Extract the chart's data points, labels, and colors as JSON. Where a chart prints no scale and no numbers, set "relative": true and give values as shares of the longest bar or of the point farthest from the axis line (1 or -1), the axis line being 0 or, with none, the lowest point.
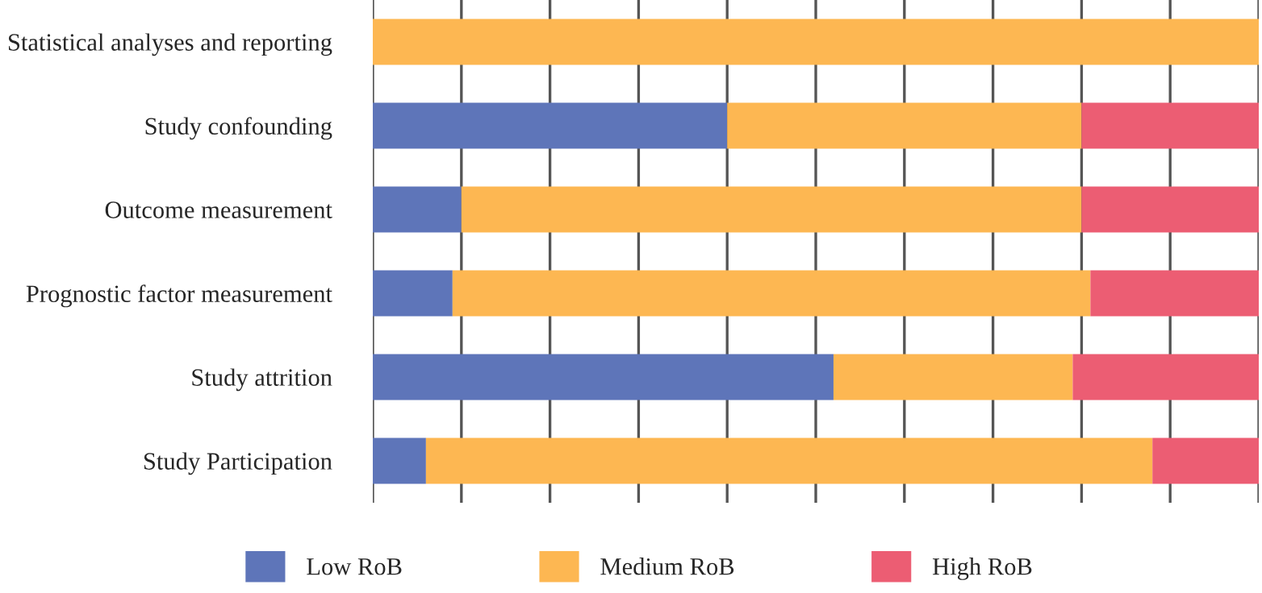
{
  "chart_data": {
    "type": "bar",
    "orientation": "horizontal",
    "stacked": true,
    "relative": true,
    "grid": "x",
    "legend": "bottom",
    "categories": [
      "Statistical analyses and reporting",
      "Study confounding",
      "Outcome measurement",
      "Prognostic factor measurement",
      "Study attrition",
      "Study Participation"
    ],
    "series": [
      {
        "name": "Low RoB",
        "color": "#5e75b9",
        "values": [
          0,
          0.4,
          0.1,
          0.09,
          0.52,
          0.06
        ]
      },
      {
        "name": "Medium RoB",
        "color": "#fdb752",
        "values": [
          1,
          0.4,
          0.7,
          0.72,
          0.27,
          0.82
        ]
      },
      {
        "name": "High RoB",
        "color": "#ec5d73",
        "values": [
          0,
          0.2,
          0.2,
          0.19,
          0.21,
          0.12
        ]
      }
    ]
  }
}
